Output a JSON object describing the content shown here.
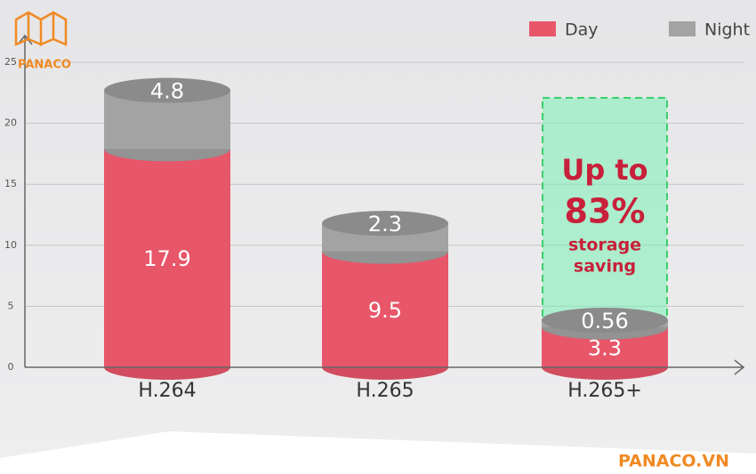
{
  "chart_data": {
    "type": "stacked-cylinder",
    "categories": [
      "H.264",
      "H.265",
      "H.265+"
    ],
    "series": [
      {
        "name": "Day",
        "color": "#e8566a",
        "values": [
          17.9,
          9.5,
          3.3
        ]
      },
      {
        "name": "Night",
        "color": "#a3a3a3",
        "values": [
          4.8,
          2.3,
          0.56
        ]
      }
    ],
    "ylim": [
      0,
      25
    ],
    "yticks": [
      0,
      5,
      10,
      15,
      20,
      25
    ],
    "grid": true,
    "legend": "top-right",
    "annotations": [
      "Up to",
      "83%",
      "storage",
      "saving"
    ]
  },
  "branding": {
    "logo": "PANACO",
    "footer": "PANACO.VN"
  }
}
